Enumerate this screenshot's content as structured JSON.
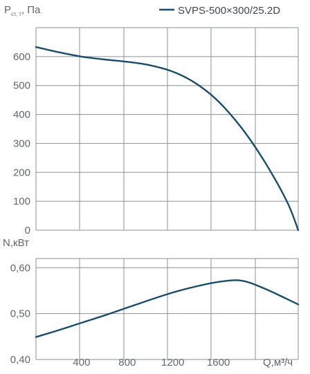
{
  "chart_data": [
    {
      "type": "line",
      "ylabel": "P",
      "ylabel_sub": "ст, т",
      "ylabel_unit": "Па",
      "ylim": [
        0,
        700
      ],
      "yticks": [
        0,
        100,
        200,
        300,
        400,
        500,
        600
      ],
      "xlim": [
        0,
        2300
      ],
      "grid": true,
      "legend": "top-right",
      "color": "#174c6b",
      "series": [
        {
          "name": "SVPS-500×300/25.2D",
          "x": [
            0,
            200,
            400,
            600,
            800,
            1000,
            1200,
            1400,
            1600,
            1800,
            2000,
            2200,
            2300
          ],
          "y": [
            633,
            615,
            600,
            590,
            582,
            570,
            548,
            508,
            445,
            355,
            240,
            100,
            0
          ]
        }
      ]
    },
    {
      "type": "line",
      "ylabel": "N,кВт",
      "xlabel": "Q,м³/ч",
      "ylim": [
        0.4,
        0.62
      ],
      "yticks": [
        "0,40",
        "0,50",
        "0,60"
      ],
      "ytick_values": [
        0.4,
        0.5,
        0.6
      ],
      "xlim": [
        0,
        2300
      ],
      "xticks": [
        400,
        800,
        1200,
        1600
      ],
      "grid": true,
      "color": "#174c6b",
      "series": [
        {
          "x": [
            0,
            200,
            400,
            600,
            800,
            1000,
            1200,
            1400,
            1600,
            1800,
            2000,
            2200,
            2300
          ],
          "y": [
            0.449,
            0.464,
            0.48,
            0.496,
            0.513,
            0.53,
            0.546,
            0.559,
            0.569,
            0.572,
            0.555,
            0.532,
            0.52
          ]
        }
      ]
    }
  ]
}
